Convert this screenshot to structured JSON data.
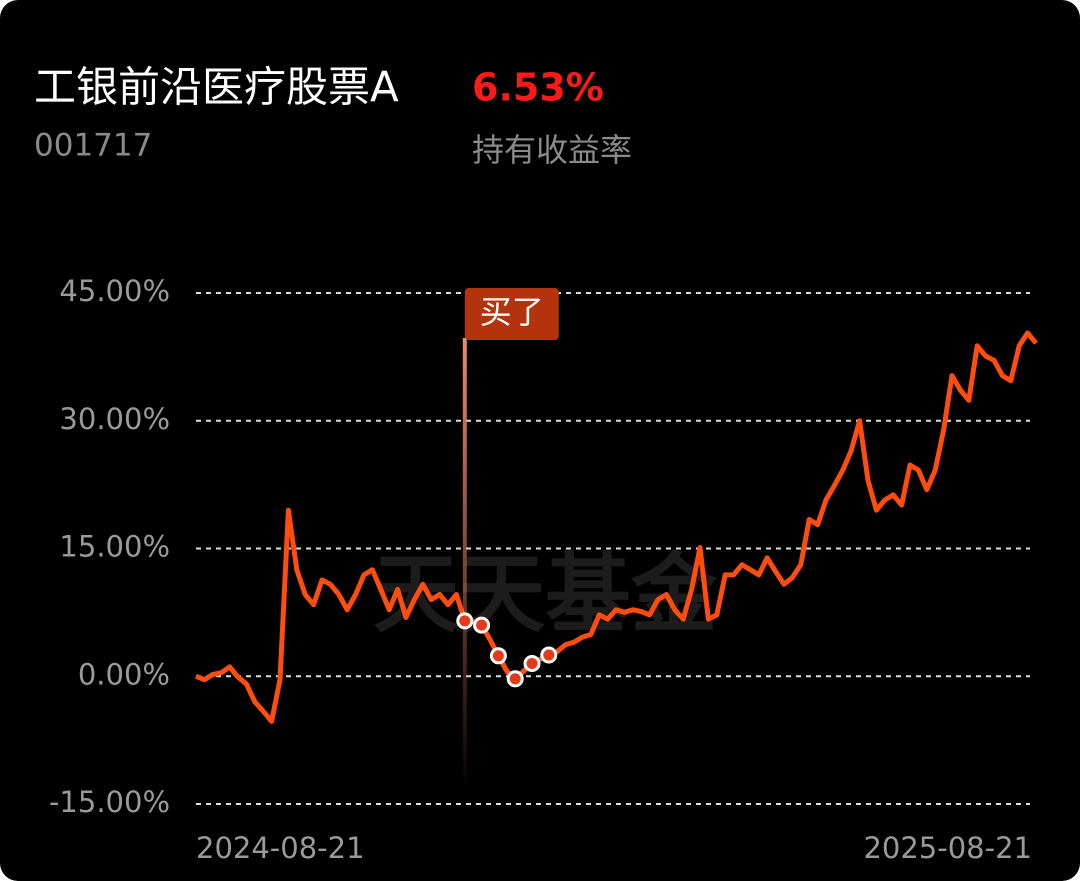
{
  "chart_data": {
    "type": "line",
    "title": "工银前沿医疗股票A",
    "return_value": 6.53,
    "return_label": "6.53%",
    "code": "001717",
    "return_caption": "持有收益率",
    "watermark": "天天基金",
    "annotation": "买了",
    "categories": [
      "2024-08-21",
      null,
      null,
      null,
      null,
      null,
      null,
      null,
      null,
      null,
      null,
      null,
      null,
      null,
      null,
      null,
      null,
      null,
      null,
      null,
      null,
      null,
      null,
      null,
      null,
      null,
      null,
      null,
      null,
      null,
      null,
      null,
      null,
      null,
      null,
      null,
      null,
      null,
      null,
      null,
      null,
      null,
      null,
      null,
      null,
      null,
      null,
      null,
      null,
      null,
      null,
      null,
      null,
      null,
      null,
      null,
      null,
      null,
      null,
      null,
      null,
      null,
      null,
      null,
      null,
      null,
      null,
      null,
      null,
      null,
      null,
      null,
      null,
      null,
      null,
      null,
      null,
      null,
      null,
      null,
      null,
      null,
      null,
      null,
      null,
      null,
      null,
      null,
      null,
      null,
      null,
      null,
      null,
      null,
      null,
      null,
      null,
      null,
      null,
      null,
      "2025-08-21"
    ],
    "series": [
      {
        "color": "#ff4d0d",
        "values": [
          0,
          -0.4,
          0.2,
          0.4,
          1.1,
          -0.1,
          -0.9,
          -3.0,
          -4.1,
          -5.3,
          -0.4,
          19.5,
          12.5,
          9.6,
          8.4,
          11.3,
          10.8,
          9.6,
          7.8,
          9.6,
          11.9,
          12.5,
          10.2,
          7.8,
          10.2,
          6.9,
          9.0,
          10.8,
          9.0,
          9.6,
          8.4,
          9.6,
          6.5,
          6.4,
          6.0,
          4.3,
          2.4,
          0.6,
          -0.3,
          0.6,
          1.5,
          2.0,
          2.5,
          2.9,
          3.7,
          4.0,
          4.6,
          4.9,
          7.2,
          6.7,
          7.8,
          7.5,
          7.8,
          7.6,
          7.2,
          9.0,
          9.6,
          7.8,
          6.7,
          10.2,
          15.1,
          6.7,
          7.2,
          11.9,
          11.9,
          13.1,
          12.5,
          11.9,
          13.9,
          12.3,
          10.8,
          11.6,
          13.1,
          18.4,
          17.8,
          20.7,
          22.4,
          24.2,
          26.5,
          30.0,
          23.0,
          19.5,
          20.7,
          21.3,
          20.1,
          24.8,
          24.2,
          21.9,
          24.2,
          28.9,
          35.3,
          33.6,
          32.4,
          38.8,
          37.6,
          37.1,
          35.3,
          34.7,
          38.8,
          40.3,
          39.1
        ]
      },
      {
        "color": "#e8381a",
        "marker": "dot",
        "values": [
          null,
          null,
          null,
          null,
          null,
          null,
          null,
          null,
          null,
          null,
          null,
          null,
          null,
          null,
          null,
          null,
          null,
          null,
          null,
          null,
          null,
          null,
          null,
          null,
          null,
          null,
          null,
          null,
          null,
          null,
          null,
          null,
          6.5,
          null,
          6.0,
          null,
          2.4,
          null,
          -0.3,
          null,
          1.5,
          null,
          2.5,
          null,
          null,
          null,
          null,
          null,
          null,
          null,
          null,
          null,
          null,
          null,
          null,
          null,
          null,
          null,
          null,
          null,
          null,
          null,
          null,
          null,
          null,
          null,
          null,
          null,
          null,
          null,
          null,
          null,
          null,
          null,
          null,
          null,
          null,
          null,
          null,
          null,
          null,
          null,
          null,
          null,
          null,
          null,
          null,
          null,
          null,
          null,
          null,
          null,
          null,
          null,
          null,
          null,
          null,
          null,
          null,
          null,
          null
        ]
      }
    ],
    "ylim": [
      -15,
      45
    ],
    "yticks": [
      {
        "value": 45,
        "label": "45.00%"
      },
      {
        "value": 30,
        "label": "30.00%"
      },
      {
        "value": 15,
        "label": "15.00%"
      },
      {
        "value": 0,
        "label": "0.00%"
      },
      {
        "value": -15,
        "label": "-15.00%"
      }
    ],
    "grid": true
  }
}
